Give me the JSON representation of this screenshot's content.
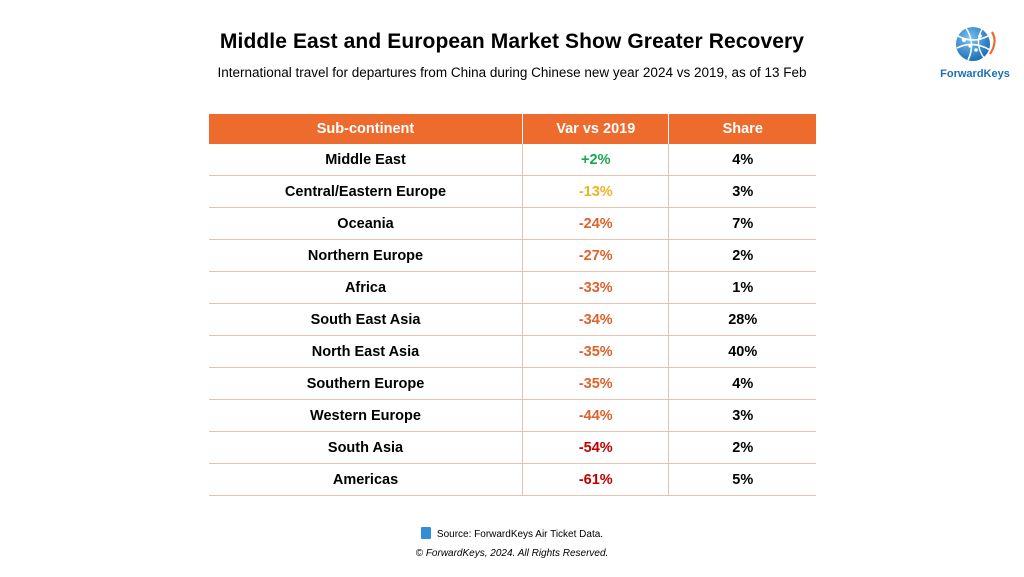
{
  "title": "Middle East and European Market Show Greater Recovery",
  "subtitle": "International travel for departures from China during Chinese new year 2024 vs 2019, as of 13 Feb",
  "logo_text": "ForwardKeys",
  "colors": {
    "header_bg": "#ec6b2d",
    "positive": "#1aa64b",
    "mild": "#f0b323",
    "moderate": "#e0612b",
    "severe": "#c00000"
  },
  "chart_data": {
    "type": "table",
    "columns": [
      "Sub-continent",
      "Var vs 2019",
      "Share"
    ],
    "rows": [
      {
        "region": "Middle East",
        "var": "+2%",
        "share": "4%",
        "var_color": "#1aa64b"
      },
      {
        "region": "Central/Eastern Europe",
        "var": "-13%",
        "share": "3%",
        "var_color": "#f0b323"
      },
      {
        "region": "Oceania",
        "var": "-24%",
        "share": "7%",
        "var_color": "#e0612b"
      },
      {
        "region": "Northern Europe",
        "var": "-27%",
        "share": "2%",
        "var_color": "#e0612b"
      },
      {
        "region": "Africa",
        "var": "-33%",
        "share": "1%",
        "var_color": "#e0612b"
      },
      {
        "region": "South East Asia",
        "var": "-34%",
        "share": "28%",
        "var_color": "#e0612b"
      },
      {
        "region": "North East Asia",
        "var": "-35%",
        "share": "40%",
        "var_color": "#e0612b"
      },
      {
        "region": "Southern Europe",
        "var": "-35%",
        "share": "4%",
        "var_color": "#e0612b"
      },
      {
        "region": "Western Europe",
        "var": "-44%",
        "share": "3%",
        "var_color": "#e0612b"
      },
      {
        "region": "South Asia",
        "var": "-54%",
        "share": "2%",
        "var_color": "#c00000"
      },
      {
        "region": "Americas",
        "var": "-61%",
        "share": "5%",
        "var_color": "#c00000"
      }
    ]
  },
  "source": "Source: ForwardKeys Air Ticket Data.",
  "copyright": "© ForwardKeys, 2024. All Rights Reserved."
}
